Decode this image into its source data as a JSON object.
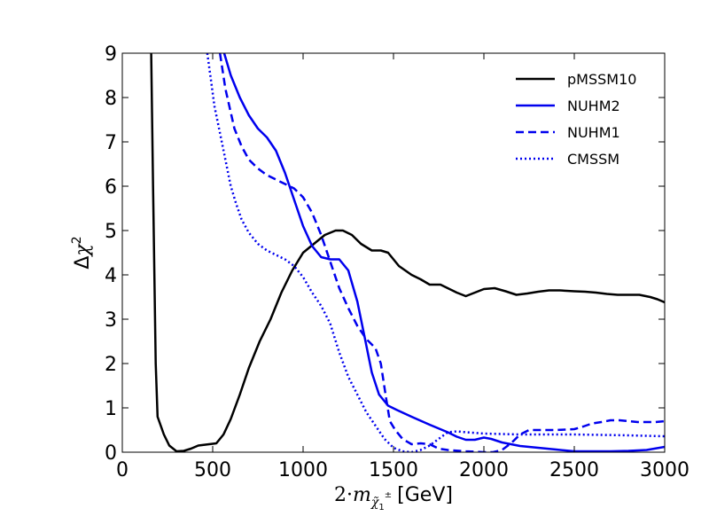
{
  "chart_data": {
    "type": "line",
    "title": "",
    "xlabel": "2·m [GeV]",
    "xlabel_parts": {
      "prefix": "2·",
      "var": "m",
      "sub": "χ̃",
      "sub_idx": "1",
      "sup": "±",
      "unit": "[GeV]"
    },
    "ylabel": "Δχ²",
    "ylabel_parts": {
      "delta": "Δ",
      "chi": "χ",
      "sup": "2"
    },
    "xlim": [
      0,
      3000
    ],
    "ylim": [
      0,
      9
    ],
    "xticks": [
      0,
      500,
      1000,
      1500,
      2000,
      2500,
      3000
    ],
    "xtick_labels": [
      "0",
      "500",
      "1000",
      "1500",
      "2000",
      "2500",
      "3000"
    ],
    "yticks": [
      0,
      1,
      2,
      3,
      4,
      5,
      6,
      7,
      8,
      9
    ],
    "ytick_labels": [
      "0",
      "1",
      "2",
      "3",
      "4",
      "5",
      "6",
      "7",
      "8",
      "9"
    ],
    "grid": false,
    "legend_position": "top-right",
    "series": [
      {
        "name": "pMSSM10",
        "color": "#000000",
        "dash": "solid",
        "points": [
          [
            160,
            9
          ],
          [
            170,
            6
          ],
          [
            185,
            2
          ],
          [
            195,
            0.8
          ],
          [
            230,
            0.4
          ],
          [
            260,
            0.15
          ],
          [
            300,
            0.02
          ],
          [
            340,
            0.03
          ],
          [
            380,
            0.08
          ],
          [
            420,
            0.15
          ],
          [
            480,
            0.18
          ],
          [
            520,
            0.2
          ],
          [
            560,
            0.4
          ],
          [
            600,
            0.75
          ],
          [
            650,
            1.3
          ],
          [
            700,
            1.9
          ],
          [
            760,
            2.5
          ],
          [
            820,
            3.0
          ],
          [
            880,
            3.6
          ],
          [
            940,
            4.1
          ],
          [
            1000,
            4.5
          ],
          [
            1060,
            4.7
          ],
          [
            1120,
            4.9
          ],
          [
            1180,
            5.0
          ],
          [
            1220,
            5.0
          ],
          [
            1270,
            4.9
          ],
          [
            1320,
            4.7
          ],
          [
            1380,
            4.55
          ],
          [
            1430,
            4.55
          ],
          [
            1470,
            4.5
          ],
          [
            1530,
            4.2
          ],
          [
            1600,
            4.0
          ],
          [
            1650,
            3.9
          ],
          [
            1700,
            3.78
          ],
          [
            1760,
            3.78
          ],
          [
            1800,
            3.7
          ],
          [
            1850,
            3.6
          ],
          [
            1900,
            3.52
          ],
          [
            1950,
            3.6
          ],
          [
            2000,
            3.68
          ],
          [
            2060,
            3.7
          ],
          [
            2120,
            3.63
          ],
          [
            2180,
            3.55
          ],
          [
            2240,
            3.58
          ],
          [
            2300,
            3.62
          ],
          [
            2360,
            3.65
          ],
          [
            2420,
            3.65
          ],
          [
            2500,
            3.63
          ],
          [
            2560,
            3.62
          ],
          [
            2620,
            3.6
          ],
          [
            2680,
            3.57
          ],
          [
            2740,
            3.55
          ],
          [
            2800,
            3.55
          ],
          [
            2860,
            3.55
          ],
          [
            2920,
            3.5
          ],
          [
            2960,
            3.45
          ],
          [
            3000,
            3.38
          ]
        ]
      },
      {
        "name": "NUHM2",
        "color": "#0000ee",
        "dash": "solid",
        "points": [
          [
            560,
            9.05
          ],
          [
            600,
            8.5
          ],
          [
            650,
            8.0
          ],
          [
            700,
            7.6
          ],
          [
            750,
            7.3
          ],
          [
            800,
            7.1
          ],
          [
            850,
            6.8
          ],
          [
            900,
            6.3
          ],
          [
            950,
            5.7
          ],
          [
            1000,
            5.1
          ],
          [
            1050,
            4.65
          ],
          [
            1100,
            4.4
          ],
          [
            1150,
            4.35
          ],
          [
            1200,
            4.35
          ],
          [
            1250,
            4.1
          ],
          [
            1300,
            3.4
          ],
          [
            1340,
            2.6
          ],
          [
            1380,
            1.8
          ],
          [
            1420,
            1.3
          ],
          [
            1470,
            1.05
          ],
          [
            1520,
            0.95
          ],
          [
            1600,
            0.8
          ],
          [
            1700,
            0.62
          ],
          [
            1800,
            0.45
          ],
          [
            1850,
            0.35
          ],
          [
            1900,
            0.28
          ],
          [
            1950,
            0.28
          ],
          [
            2000,
            0.33
          ],
          [
            2040,
            0.3
          ],
          [
            2100,
            0.22
          ],
          [
            2150,
            0.18
          ],
          [
            2200,
            0.14
          ],
          [
            2300,
            0.1
          ],
          [
            2400,
            0.06
          ],
          [
            2500,
            0.02
          ],
          [
            2600,
            0.02
          ],
          [
            2700,
            0.02
          ],
          [
            2800,
            0.03
          ],
          [
            2900,
            0.05
          ],
          [
            3000,
            0.12
          ]
        ]
      },
      {
        "name": "NUHM1",
        "color": "#0000ee",
        "dash": "dashed",
        "points": [
          [
            540,
            9.0
          ],
          [
            570,
            8.2
          ],
          [
            620,
            7.3
          ],
          [
            660,
            6.9
          ],
          [
            700,
            6.6
          ],
          [
            750,
            6.4
          ],
          [
            800,
            6.25
          ],
          [
            850,
            6.15
          ],
          [
            900,
            6.05
          ],
          [
            950,
            5.95
          ],
          [
            1000,
            5.75
          ],
          [
            1050,
            5.4
          ],
          [
            1100,
            4.9
          ],
          [
            1150,
            4.3
          ],
          [
            1200,
            3.7
          ],
          [
            1250,
            3.25
          ],
          [
            1300,
            2.85
          ],
          [
            1350,
            2.55
          ],
          [
            1400,
            2.35
          ],
          [
            1430,
            2.0
          ],
          [
            1460,
            1.2
          ],
          [
            1480,
            0.7
          ],
          [
            1510,
            0.5
          ],
          [
            1550,
            0.3
          ],
          [
            1600,
            0.18
          ],
          [
            1650,
            0.2
          ],
          [
            1700,
            0.18
          ],
          [
            1750,
            0.08
          ],
          [
            1800,
            0.05
          ],
          [
            1900,
            0.02
          ],
          [
            2000,
            0.0
          ],
          [
            2050,
            0.0
          ],
          [
            2100,
            0.05
          ],
          [
            2150,
            0.2
          ],
          [
            2200,
            0.4
          ],
          [
            2250,
            0.5
          ],
          [
            2300,
            0.5
          ],
          [
            2400,
            0.5
          ],
          [
            2500,
            0.52
          ],
          [
            2550,
            0.58
          ],
          [
            2600,
            0.65
          ],
          [
            2650,
            0.68
          ],
          [
            2700,
            0.72
          ],
          [
            2750,
            0.72
          ],
          [
            2800,
            0.7
          ],
          [
            2850,
            0.68
          ],
          [
            2900,
            0.68
          ],
          [
            2950,
            0.68
          ],
          [
            3000,
            0.7
          ]
        ]
      },
      {
        "name": "CMSSM",
        "color": "#0000ee",
        "dash": "dotted",
        "points": [
          [
            470,
            9.0
          ],
          [
            490,
            8.4
          ],
          [
            510,
            7.8
          ],
          [
            540,
            7.2
          ],
          [
            570,
            6.6
          ],
          [
            600,
            6.0
          ],
          [
            630,
            5.6
          ],
          [
            660,
            5.25
          ],
          [
            700,
            4.95
          ],
          [
            750,
            4.7
          ],
          [
            800,
            4.55
          ],
          [
            850,
            4.45
          ],
          [
            900,
            4.35
          ],
          [
            950,
            4.2
          ],
          [
            1000,
            3.95
          ],
          [
            1050,
            3.6
          ],
          [
            1100,
            3.3
          ],
          [
            1150,
            2.9
          ],
          [
            1200,
            2.25
          ],
          [
            1250,
            1.7
          ],
          [
            1300,
            1.3
          ],
          [
            1350,
            0.9
          ],
          [
            1400,
            0.6
          ],
          [
            1450,
            0.3
          ],
          [
            1500,
            0.1
          ],
          [
            1550,
            0.02
          ],
          [
            1600,
            0.0
          ],
          [
            1650,
            0.05
          ],
          [
            1700,
            0.15
          ],
          [
            1750,
            0.3
          ],
          [
            1800,
            0.45
          ],
          [
            1850,
            0.47
          ],
          [
            1900,
            0.45
          ],
          [
            2000,
            0.42
          ],
          [
            2200,
            0.4
          ],
          [
            2500,
            0.4
          ],
          [
            2800,
            0.38
          ],
          [
            3000,
            0.36
          ]
        ]
      }
    ]
  }
}
